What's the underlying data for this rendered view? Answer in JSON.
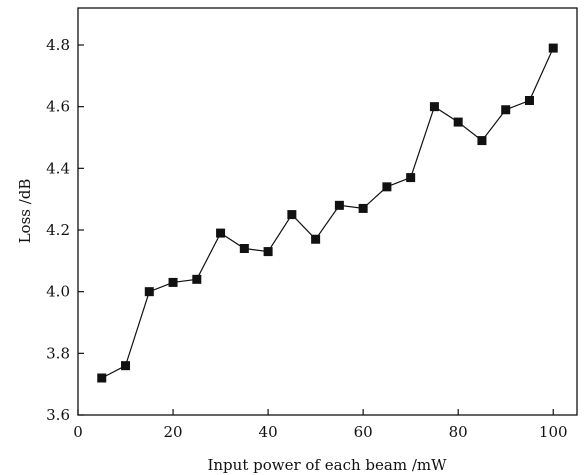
{
  "chart_data": {
    "type": "line",
    "title": "",
    "xlabel": "Input power of each beam /mW",
    "ylabel": "Loss /dB",
    "xlim": [
      0,
      105
    ],
    "ylim": [
      3.6,
      4.92
    ],
    "x_ticks": [
      0,
      20,
      40,
      60,
      80,
      100
    ],
    "y_ticks": [
      3.6,
      3.8,
      4.0,
      4.2,
      4.4,
      4.6,
      4.8
    ],
    "x_tick_labels": [
      "0",
      "20",
      "40",
      "60",
      "80",
      "100"
    ],
    "y_tick_labels": [
      "3.6",
      "3.8",
      "4.0",
      "4.2",
      "4.4",
      "4.6",
      "4.8"
    ],
    "grid": false,
    "marker": "square",
    "series": [
      {
        "x": [
          5,
          10,
          15,
          20,
          25,
          30,
          35,
          40,
          45,
          50,
          55,
          60,
          65,
          70,
          75,
          80,
          85,
          90,
          95,
          100
        ],
        "y": [
          3.72,
          3.76,
          4.0,
          4.03,
          4.04,
          4.19,
          4.14,
          4.13,
          4.25,
          4.17,
          4.28,
          4.27,
          4.34,
          4.37,
          4.6,
          4.55,
          4.49,
          4.59,
          4.62,
          4.79
        ]
      }
    ]
  }
}
